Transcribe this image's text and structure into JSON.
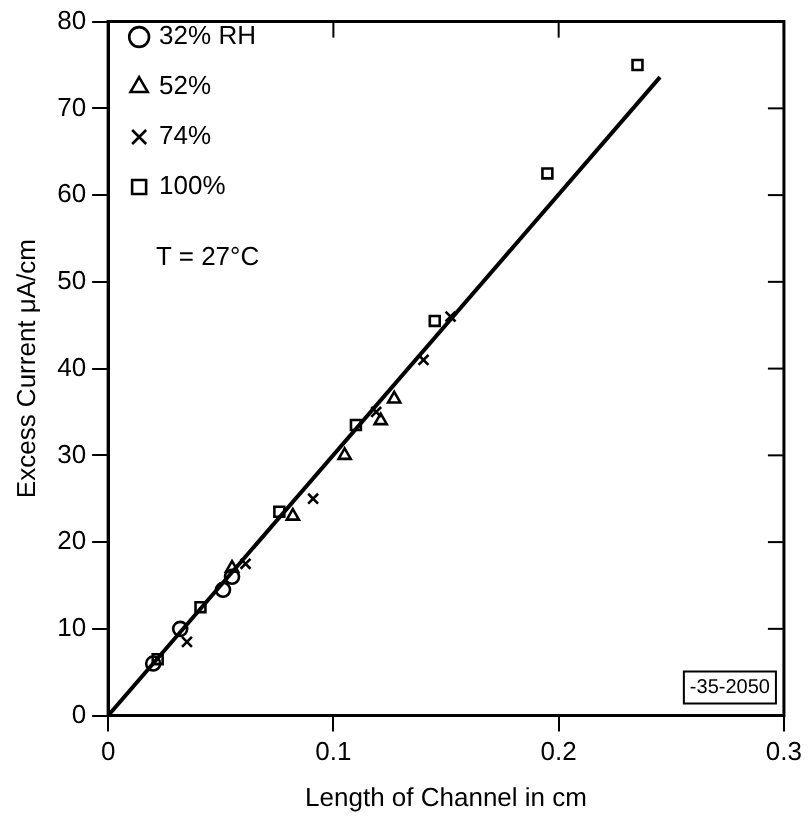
{
  "chart_data": {
    "type": "scatter",
    "xlabel": "Length of Channel in cm",
    "ylabel": "Excess Current μA/cm",
    "xlim": [
      0,
      0.3
    ],
    "xticks": [
      0,
      0.1,
      0.2,
      0.3
    ],
    "ylim": [
      0,
      80
    ],
    "yticks": [
      0,
      10,
      20,
      30,
      40,
      50,
      60,
      70,
      80
    ],
    "grid": false,
    "legend": "top left",
    "annotations": [
      "T = 27°C",
      "-35-2050"
    ],
    "series": [
      {
        "name": "32% RH",
        "color": "#000000",
        "marker": "circle",
        "x": [
          0.02,
          0.032,
          0.051,
          0.055
        ],
        "values": [
          6,
          10,
          14.5,
          16
        ]
      },
      {
        "name": "52%",
        "color": "#000000",
        "marker": "triangle",
        "x": [
          0.055,
          0.082,
          0.105,
          0.121,
          0.127
        ],
        "values": [
          17,
          23,
          30,
          34,
          36.5
        ]
      },
      {
        "name": "74%",
        "color": "#000000",
        "marker": "cross",
        "x": [
          0.035,
          0.061,
          0.091,
          0.119,
          0.14,
          0.152
        ],
        "values": [
          8.5,
          17.5,
          25,
          35,
          41,
          46
        ]
      },
      {
        "name": "100%",
        "color": "#000000",
        "marker": "square",
        "x": [
          0.022,
          0.041,
          0.076,
          0.11,
          0.145,
          0.195,
          0.235
        ],
        "values": [
          6.5,
          12.5,
          23.5,
          33.5,
          45.5,
          62.5,
          75
        ]
      },
      {
        "type": "line",
        "color": "#000000",
        "x": [
          0,
          0.245
        ],
        "values": [
          0,
          73.6
        ]
      }
    ]
  }
}
